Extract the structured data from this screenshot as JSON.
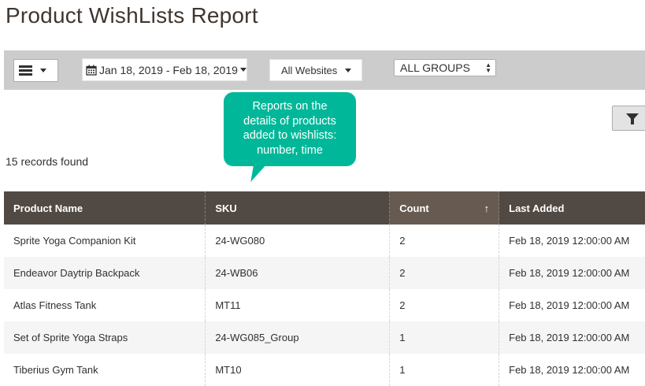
{
  "page": {
    "title": "Product WishLists Report"
  },
  "toolbar": {
    "date_range": "Jan 18, 2019 - Feb 18, 2019",
    "website": "All Websites",
    "group": "ALL GROUPS"
  },
  "tooltip": {
    "lines": [
      "Reports on the",
      "details of products",
      "added to wishlists:",
      "number, time"
    ]
  },
  "records_found": "15 records found",
  "table": {
    "headers": [
      "Product Name",
      "SKU",
      "Count",
      "Last Added"
    ],
    "sort_indicator": "↑",
    "rows": [
      [
        "Sprite Yoga Companion Kit",
        "24-WG080",
        "2",
        "Feb 18, 2019 12:00:00 AM"
      ],
      [
        "Endeavor Daytrip Backpack",
        "24-WB06",
        "2",
        "Feb 18, 2019 12:00:00 AM"
      ],
      [
        "Atlas Fitness Tank",
        "MT11",
        "2",
        "Feb 18, 2019 12:00:00 AM"
      ],
      [
        "Set of Sprite Yoga Straps",
        "24-WG085_Group",
        "1",
        "Feb 18, 2019 12:00:00 AM"
      ],
      [
        "Tiberius Gym Tank",
        "MT10",
        "1",
        "Feb 18, 2019 12:00:00 AM"
      ]
    ]
  },
  "icons": {
    "menu": "hamburger-icon",
    "calendar": "calendar-icon",
    "filter": "filter-icon"
  },
  "colors": {
    "header_bg": "#514943",
    "tooltip_bg": "#00b899",
    "toolbar_bg": "#cccccc"
  }
}
